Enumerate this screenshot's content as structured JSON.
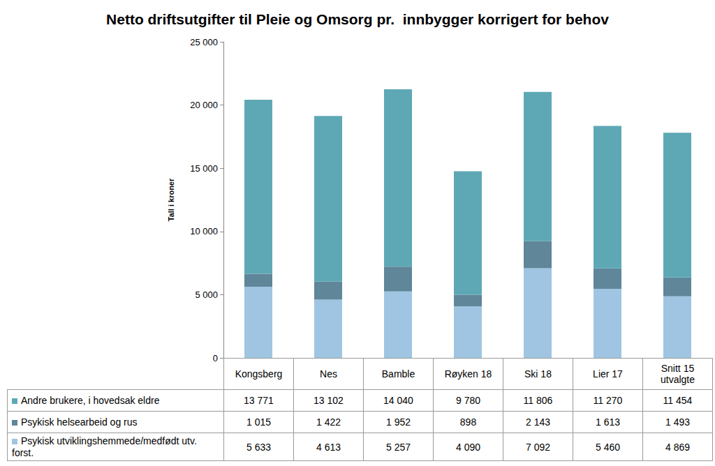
{
  "chart_data": {
    "type": "bar",
    "stacked": true,
    "title": "Netto driftsutgifter til Pleie og Omsorg pr.  innbygger korrigert for behov",
    "y_label": "Tall i kroner",
    "categories": [
      "Kongsberg",
      "Nes",
      "Bamble",
      "Røyken 18",
      "Ski 18",
      "Lier 17",
      "Snitt 15 utvalgte"
    ],
    "series": [
      {
        "name": "Andre brukere, i hovedsak eldre",
        "color": "#5ea8b5",
        "values": [
          13771,
          13102,
          14040,
          9780,
          11806,
          11270,
          11454
        ],
        "value_labels": [
          "13 771",
          "13 102",
          "14 040",
          "9 780",
          "11 806",
          "11 270",
          "11 454"
        ]
      },
      {
        "name": "Psykisk helsearbeid og rus",
        "color": "#5f8699",
        "values": [
          1015,
          1422,
          1952,
          898,
          2143,
          1613,
          1493
        ],
        "value_labels": [
          "1 015",
          "1 422",
          "1 952",
          "898",
          "2 143",
          "1 613",
          "1 493"
        ]
      },
      {
        "name": "Psykisk utviklingshemmede/medfødt utv. forst.",
        "color": "#9fc5e2",
        "values": [
          5633,
          4613,
          5257,
          4090,
          7092,
          5460,
          4869
        ],
        "value_labels": [
          "5 633",
          "4 613",
          "5 257",
          "4 090",
          "7 092",
          "5 460",
          "4 869"
        ]
      }
    ],
    "ylim": [
      0,
      25000
    ],
    "yticks": [
      0,
      {
        "value": 5000,
        "label": "5 000"
      },
      {
        "value": 10000,
        "label": "10 000"
      },
      {
        "value": 15000,
        "label": "15 000"
      },
      {
        "value": 20000,
        "label": "20 000"
      },
      {
        "value": 25000,
        "label": "25 000"
      }
    ],
    "grid": false
  }
}
